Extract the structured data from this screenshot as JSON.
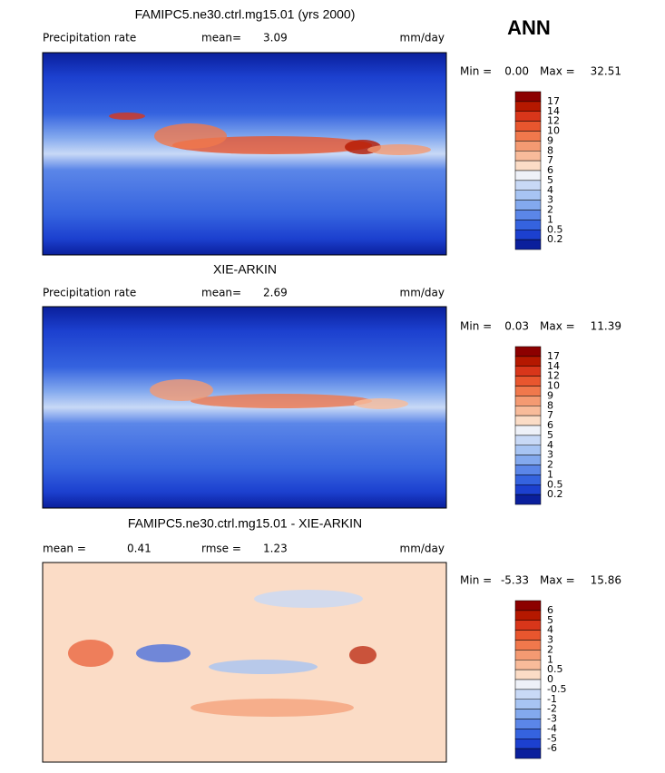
{
  "header": {
    "season": "ANN"
  },
  "panels": [
    {
      "title": "FAMIPC5.ne30.ctrl.mg15.01 (yrs 2000)",
      "row": [
        {
          "label": "Precipitation rate"
        },
        {
          "label": "mean=",
          "value": "3.09"
        }
      ],
      "units": "mm/day",
      "min_label": "Min =",
      "min_value": "0.00",
      "max_label": "Max =",
      "max_value": "32.51",
      "colorbar": {
        "labels": [
          "17",
          "14",
          "12",
          "10",
          "9",
          "8",
          "7",
          "6",
          "5",
          "4",
          "3",
          "2",
          "1",
          "0.5",
          "0.2"
        ],
        "colors": [
          "#8c0000",
          "#b51800",
          "#d8361a",
          "#e8562e",
          "#f0784c",
          "#f49a72",
          "#f8bb9a",
          "#fbdcc6",
          "#eef1f8",
          "#c8d9f6",
          "#a7c4f3",
          "#83a9ee",
          "#5b86e8",
          "#3563df",
          "#1c40cf",
          "#0a1f9c"
        ]
      }
    },
    {
      "title": "XIE-ARKIN",
      "row": [
        {
          "label": "Precipitation rate"
        },
        {
          "label": "mean=",
          "value": "2.69"
        }
      ],
      "units": "mm/day",
      "min_label": "Min =",
      "min_value": "0.03",
      "max_label": "Max =",
      "max_value": "11.39",
      "colorbar": {
        "labels": [
          "17",
          "14",
          "12",
          "10",
          "9",
          "8",
          "7",
          "6",
          "5",
          "4",
          "3",
          "2",
          "1",
          "0.5",
          "0.2"
        ],
        "colors": [
          "#8c0000",
          "#b51800",
          "#d8361a",
          "#e8562e",
          "#f0784c",
          "#f49a72",
          "#f8bb9a",
          "#fbdcc6",
          "#eef1f8",
          "#c8d9f6",
          "#a7c4f3",
          "#83a9ee",
          "#5b86e8",
          "#3563df",
          "#1c40cf",
          "#0a1f9c"
        ]
      }
    },
    {
      "title": "FAMIPC5.ne30.ctrl.mg15.01 - XIE-ARKIN",
      "row": [
        {
          "label": "mean =",
          "value": "0.41"
        },
        {
          "label": "rmse =",
          "value": "1.23"
        }
      ],
      "units": "mm/day",
      "min_label": "Min =",
      "min_value": "-5.33",
      "max_label": "Max =",
      "max_value": "15.86",
      "colorbar": {
        "labels": [
          "6",
          "5",
          "4",
          "3",
          "2",
          "1",
          "0.5",
          "0",
          "-0.5",
          "-1",
          "-2",
          "-3",
          "-4",
          "-5",
          "-6"
        ],
        "colors": [
          "#8c0000",
          "#b51800",
          "#d8361a",
          "#e8562e",
          "#f0784c",
          "#f49a72",
          "#f8bb9a",
          "#fbdcc6",
          "#eef1f8",
          "#c8d9f6",
          "#a7c4f3",
          "#83a9ee",
          "#5b86e8",
          "#3563df",
          "#1c40cf",
          "#0a1f9c"
        ]
      }
    }
  ]
}
